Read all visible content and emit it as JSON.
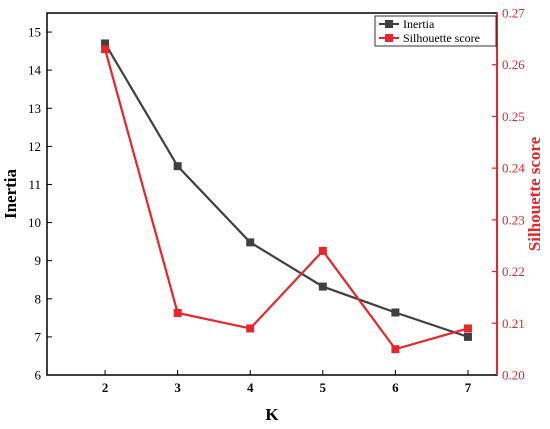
{
  "chart_data": {
    "type": "line",
    "xlabel": "K",
    "x": [
      2,
      3,
      4,
      5,
      6,
      7
    ],
    "xlim": [
      1.2,
      7.4
    ],
    "xticks": [
      2,
      3,
      4,
      5,
      6,
      7
    ],
    "series": [
      {
        "name": "Inertia",
        "axis": "left",
        "color": "#404040",
        "marker": "square",
        "values": [
          14.7,
          11.48,
          9.48,
          8.32,
          7.64,
          7.0
        ]
      },
      {
        "name": "Silhouette score",
        "axis": "right",
        "color": "#e8252a",
        "marker": "square",
        "values": [
          0.263,
          0.212,
          0.209,
          0.224,
          0.205,
          0.209
        ]
      }
    ],
    "left_axis": {
      "label": "Inertia",
      "ylim": [
        6,
        15.5
      ],
      "ticks": [
        6,
        7,
        8,
        9,
        10,
        11,
        12,
        13,
        14,
        15
      ],
      "color": "#000000"
    },
    "right_axis": {
      "label": "Silhouette score",
      "ylim": [
        0.2,
        0.27
      ],
      "ticks": [
        "0.20",
        "0.21",
        "0.22",
        "0.23",
        "0.24",
        "0.25",
        "0.26",
        "0.27"
      ],
      "color": "#e8252a"
    },
    "legend_position": "top-right",
    "grid": false
  }
}
